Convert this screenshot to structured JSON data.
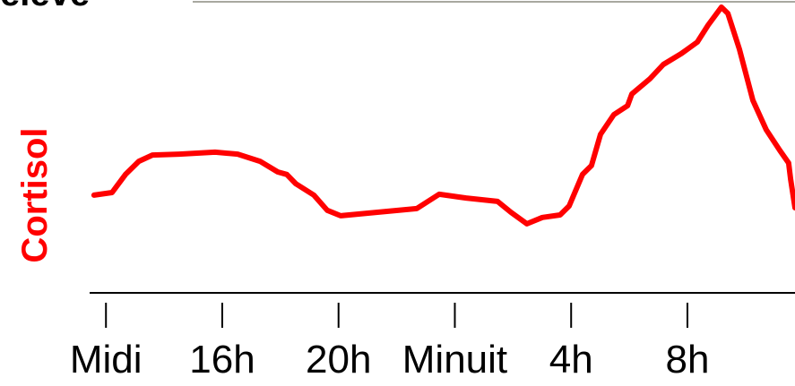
{
  "chart_data": {
    "type": "line",
    "annotation": "élevé",
    "ylabel": "Cortisol",
    "x": [
      -0.41,
      0.21,
      0.67,
      1.13,
      1.6,
      2.52,
      3.75,
      4.53,
      5.3,
      5.91,
      6.22,
      6.53,
      7.15,
      7.61,
      8.07,
      9.3,
      10.69,
      11.46,
      12.39,
      13.47,
      13.93,
      14.48,
      15.01,
      15.62,
      15.93,
      16.39,
      16.7,
      17.01,
      17.47,
      17.94,
      18.09,
      18.71,
      19.17,
      19.78,
      20.34,
      20.71,
      21.17,
      21.39,
      21.79,
      22.25,
      22.71,
      23.18,
      23.48,
      23.55,
      23.7
    ],
    "series": [
      {
        "name": "Cortisol",
        "color": "#ff0000",
        "values": [
          34.1,
          35,
          41.3,
          45.9,
          48.1,
          48.4,
          49.1,
          48.4,
          45.9,
          42.2,
          41.3,
          38.1,
          34.1,
          28.8,
          26.9,
          28.1,
          29.4,
          34.4,
          33.1,
          31.9,
          28.1,
          24.1,
          26.3,
          27.2,
          30.3,
          41.3,
          44.4,
          55.3,
          62.2,
          65.3,
          69.4,
          74.7,
          79.7,
          83.4,
          87.5,
          93.4,
          99.7,
          97.5,
          85,
          67.2,
          56.9,
          49.7,
          45.3,
          39.7,
          29.7
        ]
      }
    ],
    "xlim": [
      -0.5,
      23.7
    ],
    "xticks": [
      {
        "value": 0,
        "label": "Midi"
      },
      {
        "value": 4,
        "label": "16h"
      },
      {
        "value": 8,
        "label": "20h"
      },
      {
        "value": 12,
        "label": "Minuit"
      },
      {
        "value": 16,
        "label": "4h"
      },
      {
        "value": 20,
        "label": "8h"
      }
    ],
    "ylim": [
      0,
      100
    ]
  }
}
